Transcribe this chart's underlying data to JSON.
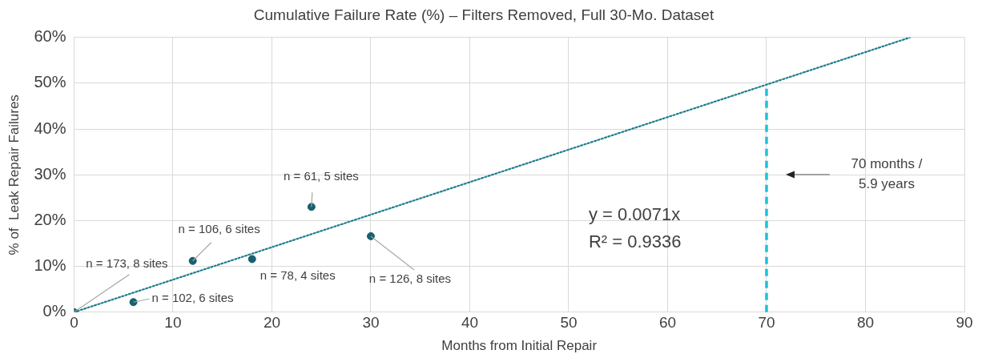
{
  "chart_data": {
    "type": "scatter",
    "title": "Cumulative Failure Rate (%) – Filters Removed, Full 30-Mo. Dataset",
    "xlabel": "Months from Initial Repair",
    "ylabel": "% of  Leak Repair Failures",
    "series": [
      {
        "color": "#17606e",
        "x": [
          0,
          6,
          12,
          18,
          24,
          30
        ],
        "values": [
          0,
          2.2,
          11.2,
          11.6,
          23,
          16.6
        ]
      },
      {
        "type": "line",
        "color": "#1f7f8f",
        "x": [
          0,
          84.5
        ],
        "values": [
          0,
          60
        ]
      }
    ],
    "line_style": "dotted",
    "grid": true,
    "xlim": [
      0,
      90
    ],
    "xticks": [
      0,
      10,
      20,
      30,
      40,
      50,
      60,
      70,
      80,
      90
    ],
    "ylim": [
      0,
      60
    ],
    "yticks": [
      {
        "value": 0,
        "label": "0%"
      },
      {
        "value": 10,
        "label": "10%"
      },
      {
        "value": 20,
        "label": "20%"
      },
      {
        "value": 30,
        "label": "30%"
      },
      {
        "value": 40,
        "label": "40%"
      },
      {
        "value": 50,
        "label": "50%"
      },
      {
        "value": 60,
        "label": "60%"
      }
    ],
    "ref_lines": [
      {
        "axis": "x",
        "value": 70,
        "color": "#1ec0dc",
        "line_style": "dashed"
      }
    ],
    "annotations": [
      {
        "text": "n = 173, 8 sites",
        "x": 0,
        "y": 0
      },
      {
        "text": "n = 102, 6 sites",
        "x": 6,
        "y": 2.2
      },
      {
        "text": "n = 106, 6 sites",
        "x": 12,
        "y": 11.2
      },
      {
        "text": "n = 78, 4 sites",
        "x": 18,
        "y": 11.6
      },
      {
        "text": "n = 61, 5 sites",
        "x": 24,
        "y": 23
      },
      {
        "text": "n = 126, 8 sites",
        "x": 30,
        "y": 16.6
      },
      "70 months /\n5.9 years",
      "y = 0.0071x\nR² = 0.9336"
    ]
  }
}
